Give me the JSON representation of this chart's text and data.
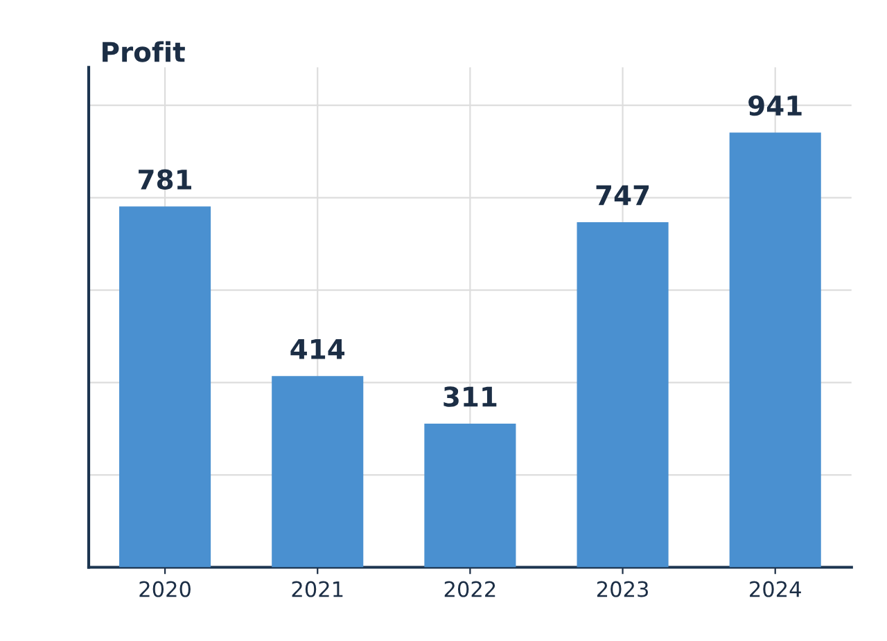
{
  "chart_data": {
    "type": "bar",
    "ylabel": "Profit",
    "categories": [
      "2020",
      "2021",
      "2022",
      "2023",
      "2024"
    ],
    "values": [
      781,
      414,
      311,
      747,
      941
    ],
    "color": "#4a90d0",
    "data_labels": true,
    "grid": true,
    "tick_labels": "x"
  }
}
